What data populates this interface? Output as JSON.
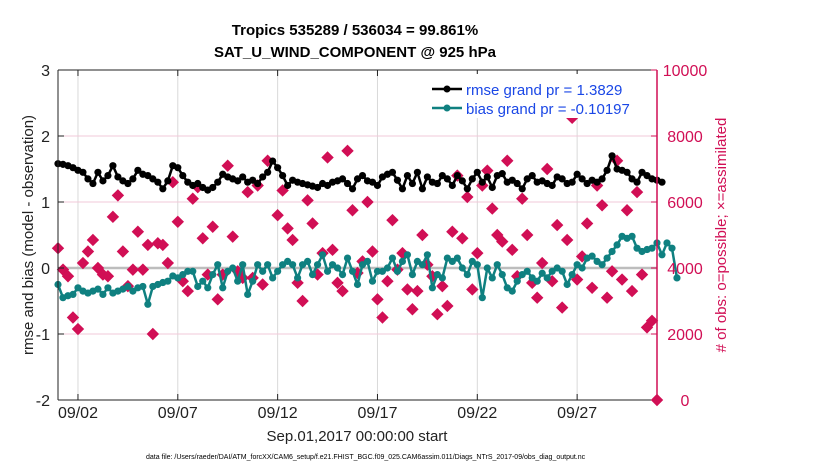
{
  "chart_data": {
    "type": "line",
    "title": "Tropics 535289 / 536034 = 99.861%",
    "subtitle": "SAT_U_WIND_COMPONENT @ 925 hPa",
    "xlabel": "Sep.01,2017 00:00:00 start",
    "ylabel": "rmse and bias (model - observation)",
    "ylabel_right": "# of obs: o=possible; ×=assimilated",
    "footnote": "data file: /Users/raeder/DAI/ATM_forcXX/CAM6_setup/f.e21.FHIST_BGC.f09_025.CAM6assim.011/Diags_NTrS_2017-09/obs_diag_output.nc",
    "x_unit": "day of Sep 2017",
    "xlim": [
      1,
      31
    ],
    "ylim": [
      -2,
      3
    ],
    "ylim_right": [
      0,
      10000
    ],
    "x_ticks": [
      {
        "value": 2,
        "label": "09/02"
      },
      {
        "value": 7,
        "label": "09/07"
      },
      {
        "value": 12,
        "label": "09/12"
      },
      {
        "value": 17,
        "label": "09/17"
      },
      {
        "value": 22,
        "label": "09/22"
      },
      {
        "value": 27,
        "label": "09/27"
      }
    ],
    "y_ticks": [
      {
        "value": 3,
        "label": "3"
      },
      {
        "value": 2,
        "label": "2"
      },
      {
        "value": 1,
        "label": "1"
      },
      {
        "value": 0,
        "label": "0"
      },
      {
        "value": -1,
        "label": "-1"
      },
      {
        "value": -2,
        "label": "-2"
      }
    ],
    "y_ticks_right": [
      {
        "value": 10000,
        "label": "10000"
      },
      {
        "value": 8000,
        "label": "8000"
      },
      {
        "value": 6000,
        "label": "6000"
      },
      {
        "value": 4000,
        "label": "4000"
      },
      {
        "value": 2000,
        "label": "2000"
      },
      {
        "value": 0,
        "label": "0"
      }
    ],
    "grid": "vertical at x ticks; horizontal at right-axis ticks",
    "zero_line": 0,
    "legend_placement": "top-right",
    "colors": {
      "rmse": "#000000",
      "bias": "#0f8080",
      "obs": "#d10f55",
      "legend_text": "#1a47e6",
      "zero_line": "#bdbdbd",
      "grid": "#d9d9d9",
      "grid_right": "#f2c8d8"
    },
    "series": [
      {
        "name": "rmse grand pr = 1.3829",
        "axis": "left",
        "x_start": 1.0,
        "x_step": 0.25,
        "values": [
          1.58,
          1.57,
          1.55,
          1.52,
          1.48,
          1.45,
          1.35,
          1.28,
          1.45,
          1.32,
          1.4,
          1.55,
          1.38,
          1.32,
          1.28,
          1.35,
          1.48,
          1.42,
          1.4,
          1.35,
          1.3,
          1.2,
          1.32,
          1.55,
          1.52,
          1.4,
          1.3,
          1.25,
          1.28,
          1.22,
          1.18,
          1.22,
          1.3,
          1.42,
          1.38,
          1.35,
          1.32,
          1.38,
          1.3,
          1.33,
          1.28,
          1.38,
          1.45,
          1.62,
          1.52,
          1.4,
          1.25,
          1.33,
          1.3,
          1.28,
          1.26,
          1.24,
          1.22,
          1.28,
          1.25,
          1.3,
          1.32,
          1.35,
          1.28,
          1.2,
          1.35,
          1.4,
          1.32,
          1.3,
          1.25,
          1.38,
          1.42,
          1.45,
          1.33,
          1.2,
          1.4,
          1.28,
          1.45,
          1.2,
          1.38,
          1.3,
          1.28,
          1.4,
          1.35,
          1.25,
          1.4,
          1.32,
          1.2,
          1.35,
          1.45,
          1.3,
          1.38,
          1.22,
          1.4,
          1.43,
          1.3,
          1.33,
          1.28,
          1.2,
          1.35,
          1.4,
          1.3,
          1.32,
          1.28,
          1.25,
          1.38,
          1.35,
          1.28,
          1.3,
          1.42,
          1.35,
          1.28,
          1.33,
          1.3,
          1.35,
          1.48,
          1.7,
          1.5,
          1.48,
          1.45,
          1.35,
          1.3,
          1.45,
          1.4,
          1.35,
          1.33,
          1.3
        ]
      },
      {
        "name": "bias grand pr = -0.10197",
        "axis": "left",
        "x_start": 1.0,
        "x_step": 0.25,
        "values": [
          -0.25,
          -0.45,
          -0.42,
          -0.4,
          -0.3,
          -0.35,
          -0.38,
          -0.35,
          -0.32,
          -0.4,
          -0.3,
          -0.38,
          -0.35,
          -0.32,
          -0.28,
          -0.35,
          -0.3,
          -0.28,
          -0.55,
          -0.28,
          -0.25,
          -0.22,
          -0.2,
          -0.12,
          -0.15,
          -0.1,
          -0.05,
          -0.05,
          -0.28,
          -0.2,
          -0.3,
          -0.1,
          0.05,
          -0.3,
          -0.05,
          0.0,
          -0.2,
          0.05,
          -0.4,
          -0.2,
          0.05,
          -0.05,
          0.05,
          -0.15,
          -0.05,
          0.05,
          0.1,
          0.05,
          -0.15,
          0.05,
          0.1,
          -0.1,
          0.05,
          0.2,
          -0.05,
          0.05,
          0.0,
          -0.1,
          0.15,
          -0.05,
          -0.25,
          0.05,
          0.1,
          -0.2,
          -0.05,
          -0.05,
          0.0,
          0.15,
          -0.05,
          0.1,
          0.2,
          -0.1,
          0.1,
          0.05,
          0.2,
          -0.3,
          -0.1,
          -0.15,
          0.15,
          0.1,
          0.15,
          0.0,
          -0.1,
          0.1,
          0.05,
          -0.45,
          0.0,
          -0.15,
          0.05,
          -0.1,
          -0.3,
          -0.35,
          -0.2,
          -0.1,
          -0.05,
          -0.15,
          -0.2,
          -0.08,
          -0.15,
          -0.05,
          0.0,
          -0.05,
          -0.25,
          -0.1,
          0.05,
          0.0,
          0.15,
          0.18,
          0.1,
          0.05,
          0.15,
          0.25,
          0.35,
          0.48,
          0.45,
          0.48,
          0.3,
          0.25,
          0.28,
          0.3,
          0.38,
          0.2,
          0.38,
          0.3,
          -0.15
        ]
      },
      {
        "name": "obs assimilated",
        "axis": "right",
        "marker": "asterisk",
        "points": [
          [
            1.0,
            4600
          ],
          [
            1.25,
            3950
          ],
          [
            1.5,
            3750
          ],
          [
            1.75,
            2500
          ],
          [
            2.0,
            2150
          ],
          [
            2.25,
            4150
          ],
          [
            2.5,
            4500
          ],
          [
            2.75,
            4850
          ],
          [
            3.0,
            4000
          ],
          [
            3.25,
            3800
          ],
          [
            3.5,
            3750
          ],
          [
            3.75,
            5550
          ],
          [
            4.0,
            6200
          ],
          [
            4.25,
            4500
          ],
          [
            4.5,
            3450
          ],
          [
            4.75,
            3950
          ],
          [
            5.0,
            5100
          ],
          [
            5.25,
            3950
          ],
          [
            5.5,
            4700
          ],
          [
            5.75,
            2000
          ],
          [
            6.0,
            4750
          ],
          [
            6.25,
            4700
          ],
          [
            6.5,
            4150
          ],
          [
            6.75,
            6600
          ],
          [
            7.0,
            5400
          ],
          [
            7.25,
            3600
          ],
          [
            7.5,
            3300
          ],
          [
            7.75,
            6100
          ],
          [
            8.0,
            6450
          ],
          [
            8.25,
            4900
          ],
          [
            8.5,
            3800
          ],
          [
            8.75,
            5250
          ],
          [
            9.0,
            3050
          ],
          [
            9.25,
            3800
          ],
          [
            9.5,
            7100
          ],
          [
            9.75,
            4950
          ],
          [
            10.0,
            3900
          ],
          [
            10.25,
            3700
          ],
          [
            10.5,
            6300
          ],
          [
            10.75,
            3700
          ],
          [
            11.0,
            6500
          ],
          [
            11.25,
            3500
          ],
          [
            11.5,
            7250
          ],
          [
            12.0,
            5600
          ],
          [
            12.25,
            6350
          ],
          [
            12.5,
            5200
          ],
          [
            12.75,
            4850
          ],
          [
            13.0,
            3550
          ],
          [
            13.25,
            3000
          ],
          [
            13.5,
            6050
          ],
          [
            13.75,
            5350
          ],
          [
            14.0,
            3800
          ],
          [
            14.25,
            4450
          ],
          [
            14.5,
            7350
          ],
          [
            14.75,
            4550
          ],
          [
            15.0,
            3550
          ],
          [
            15.25,
            3300
          ],
          [
            15.5,
            7550
          ],
          [
            15.75,
            5750
          ],
          [
            16.0,
            3850
          ],
          [
            16.25,
            4200
          ],
          [
            16.5,
            6000
          ],
          [
            16.75,
            4500
          ],
          [
            17.0,
            3050
          ],
          [
            17.25,
            2500
          ],
          [
            17.5,
            3600
          ],
          [
            17.75,
            5450
          ],
          [
            18.0,
            3950
          ],
          [
            18.25,
            4450
          ],
          [
            18.5,
            3350
          ],
          [
            18.75,
            2750
          ],
          [
            19.0,
            3300
          ],
          [
            19.25,
            5000
          ],
          [
            19.5,
            4100
          ],
          [
            19.75,
            3750
          ],
          [
            20.0,
            2600
          ],
          [
            20.25,
            3450
          ],
          [
            20.5,
            2850
          ],
          [
            20.75,
            5100
          ],
          [
            21.0,
            6800
          ],
          [
            21.25,
            4900
          ],
          [
            21.5,
            6150
          ],
          [
            21.75,
            3350
          ],
          [
            22.0,
            4450
          ],
          [
            22.25,
            6500
          ],
          [
            22.5,
            6950
          ],
          [
            22.75,
            5800
          ],
          [
            23.0,
            5000
          ],
          [
            23.25,
            4800
          ],
          [
            23.5,
            7250
          ],
          [
            23.75,
            4550
          ],
          [
            24.0,
            3750
          ],
          [
            24.25,
            6100
          ],
          [
            24.5,
            5000
          ],
          [
            24.75,
            3550
          ],
          [
            25.0,
            3100
          ],
          [
            25.25,
            4150
          ],
          [
            25.5,
            7000
          ],
          [
            25.75,
            3600
          ],
          [
            26.0,
            5300
          ],
          [
            26.25,
            2800
          ],
          [
            26.5,
            4850
          ],
          [
            26.75,
            8550
          ],
          [
            27.0,
            3650
          ],
          [
            27.25,
            4350
          ],
          [
            27.5,
            5350
          ],
          [
            27.75,
            3400
          ],
          [
            28.0,
            6500
          ],
          [
            28.25,
            5900
          ],
          [
            28.5,
            3100
          ],
          [
            28.75,
            3900
          ],
          [
            29.0,
            7250
          ],
          [
            29.25,
            3650
          ],
          [
            29.5,
            5750
          ],
          [
            29.75,
            3300
          ],
          [
            30.0,
            6300
          ],
          [
            30.25,
            3800
          ],
          [
            30.5,
            2200
          ],
          [
            30.75,
            2400
          ],
          [
            31.0,
            0
          ]
        ]
      }
    ],
    "legend": [
      {
        "label": "rmse grand pr = 1.3829",
        "color": "#000000"
      },
      {
        "label": "bias grand pr = -0.10197",
        "color": "#0f8080"
      }
    ]
  }
}
